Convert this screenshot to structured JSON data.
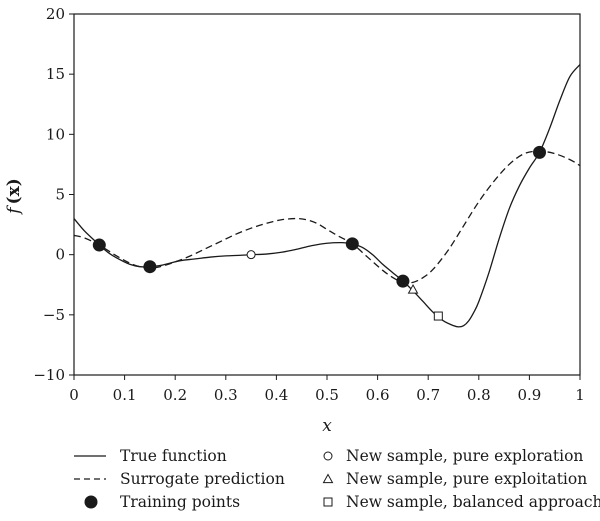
{
  "chart_data": {
    "type": "line",
    "xlabel": "x",
    "ylabel_main": "f",
    "ylabel_arg": "(x)",
    "xlim": [
      0,
      1
    ],
    "ylim": [
      -10,
      20
    ],
    "xticks": [
      "0",
      "0.1",
      "0.2",
      "0.3",
      "0.4",
      "0.5",
      "0.6",
      "0.7",
      "0.8",
      "0.9",
      "1"
    ],
    "xtick_values": [
      0,
      0.1,
      0.2,
      0.3,
      0.4,
      0.5,
      0.6,
      0.7,
      0.8,
      0.9,
      1.0
    ],
    "yticks": [
      "−10",
      "−5",
      "0",
      "5",
      "10",
      "15",
      "20"
    ],
    "ytick_values": [
      -10,
      -5,
      0,
      5,
      10,
      15,
      20
    ],
    "grid": false,
    "legend_placement": "bottom",
    "series": [
      {
        "name": "True function",
        "style": "solid",
        "color": "#1a1a1a",
        "x": [
          0.0,
          0.02,
          0.04,
          0.05,
          0.07,
          0.09,
          0.11,
          0.13,
          0.15,
          0.17,
          0.19,
          0.21,
          0.24,
          0.27,
          0.3,
          0.33,
          0.35,
          0.38,
          0.41,
          0.44,
          0.47,
          0.5,
          0.53,
          0.55,
          0.57,
          0.59,
          0.61,
          0.63,
          0.65,
          0.67,
          0.69,
          0.71,
          0.73,
          0.75,
          0.76,
          0.77,
          0.78,
          0.79,
          0.8,
          0.82,
          0.84,
          0.86,
          0.88,
          0.9,
          0.92,
          0.94,
          0.96,
          0.98,
          1.0
        ],
        "y": [
          3.0,
          2.0,
          1.2,
          0.8,
          0.1,
          -0.4,
          -0.8,
          -1.0,
          -1.0,
          -0.9,
          -0.7,
          -0.5,
          -0.35,
          -0.2,
          -0.1,
          -0.05,
          0.0,
          0.05,
          0.2,
          0.45,
          0.75,
          0.95,
          1.0,
          0.9,
          0.6,
          0.0,
          -0.8,
          -1.5,
          -2.2,
          -3.0,
          -3.9,
          -4.8,
          -5.5,
          -5.9,
          -6.0,
          -5.9,
          -5.5,
          -4.8,
          -3.9,
          -1.5,
          1.3,
          3.8,
          5.7,
          7.2,
          8.5,
          10.5,
          12.8,
          14.8,
          15.8
        ]
      },
      {
        "name": "Surrogate prediction",
        "style": "dashed",
        "color": "#1a1a1a",
        "x": [
          0.0,
          0.02,
          0.05,
          0.08,
          0.11,
          0.13,
          0.15,
          0.17,
          0.2,
          0.23,
          0.26,
          0.29,
          0.32,
          0.35,
          0.38,
          0.41,
          0.44,
          0.46,
          0.48,
          0.5,
          0.52,
          0.55,
          0.58,
          0.61,
          0.63,
          0.65,
          0.67,
          0.69,
          0.71,
          0.74,
          0.77,
          0.8,
          0.83,
          0.86,
          0.89,
          0.92,
          0.95,
          0.98,
          1.0
        ],
        "y": [
          1.6,
          1.4,
          0.8,
          0.0,
          -0.7,
          -1.0,
          -1.1,
          -1.0,
          -0.6,
          -0.1,
          0.5,
          1.1,
          1.7,
          2.2,
          2.6,
          2.9,
          3.0,
          2.9,
          2.6,
          2.1,
          1.6,
          0.9,
          -0.2,
          -1.3,
          -1.9,
          -2.3,
          -2.3,
          -1.9,
          -1.2,
          0.4,
          2.4,
          4.4,
          6.1,
          7.5,
          8.4,
          8.6,
          8.4,
          7.9,
          7.4
        ]
      }
    ],
    "training_points": {
      "name": "Training points",
      "marker": "filled-circle",
      "x": [
        0.05,
        0.15,
        0.55,
        0.65,
        0.92
      ],
      "y": [
        0.8,
        -1.0,
        0.9,
        -2.2,
        8.5
      ]
    },
    "new_samples": [
      {
        "name": "New sample, pure exploration",
        "marker": "open-circle",
        "x": 0.35,
        "y": 0.0
      },
      {
        "name": "New sample, pure exploitation",
        "marker": "open-triangle",
        "x": 0.67,
        "y": -2.9
      },
      {
        "name": "New sample, balanced approach",
        "marker": "open-square",
        "x": 0.72,
        "y": -5.1
      }
    ],
    "legend": [
      {
        "label": "True function",
        "symbol": "solid-line"
      },
      {
        "label": "Surrogate prediction",
        "symbol": "dashed-line"
      },
      {
        "label": "Training points",
        "symbol": "filled-circle"
      },
      {
        "label": "New sample, pure exploration",
        "symbol": "open-circle"
      },
      {
        "label": "New sample, pure exploitation",
        "symbol": "open-triangle"
      },
      {
        "label": "New sample, balanced approach",
        "symbol": "open-square"
      }
    ]
  }
}
